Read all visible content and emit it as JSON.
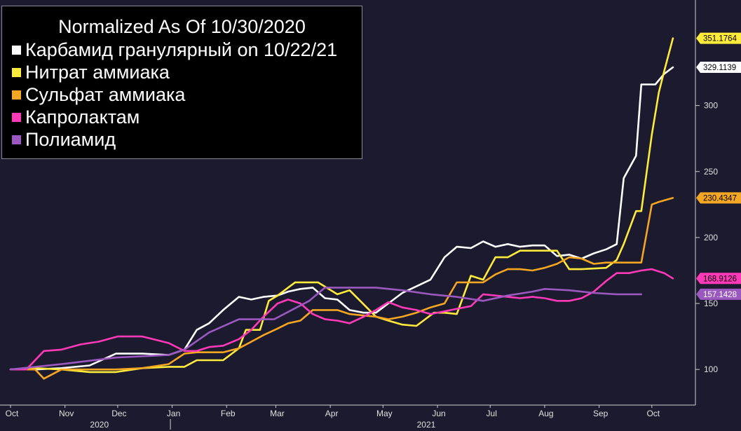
{
  "colors": {
    "background": "#1c1a2e",
    "axis": "#cfcfcf"
  },
  "chart_data": {
    "type": "line",
    "legend_position": "top-left",
    "grid": false,
    "title": "Normalized As Of 10/30/2020",
    "x_range": [
      "2020-10-01",
      "2021-10-31"
    ],
    "x_ticks": [
      {
        "date": "2020-10-01",
        "label": "Oct"
      },
      {
        "date": "2020-11-01",
        "label": "Nov"
      },
      {
        "date": "2020-12-01",
        "label": "Dec"
      },
      {
        "date": "2021-01-01",
        "label": "Jan"
      },
      {
        "date": "2021-02-01",
        "label": "Feb"
      },
      {
        "date": "2021-03-01",
        "label": "Mar"
      },
      {
        "date": "2021-04-01",
        "label": "Apr"
      },
      {
        "date": "2021-05-01",
        "label": "May"
      },
      {
        "date": "2021-06-01",
        "label": "Jun"
      },
      {
        "date": "2021-07-01",
        "label": "Jul"
      },
      {
        "date": "2021-08-01",
        "label": "Aug"
      },
      {
        "date": "2021-09-01",
        "label": "Sep"
      },
      {
        "date": "2021-10-01",
        "label": "Oct"
      }
    ],
    "year_labels": [
      {
        "date": "2020-11-15",
        "label": "2020"
      },
      {
        "date": "2021-05-20",
        "label": "2021"
      }
    ],
    "year_divider": "2020-12-31",
    "ylim": [
      73,
      380
    ],
    "y_ticks": [
      100,
      150,
      200,
      250,
      300
    ],
    "series": [
      {
        "name": "Карбамид гранулярный on 10/22/21",
        "color": "#ffffff",
        "last_label": "329.1139",
        "points": [
          [
            "2020-10-01",
            100
          ],
          [
            "2020-10-15",
            100
          ],
          [
            "2020-10-30",
            101
          ],
          [
            "2020-11-15",
            103
          ],
          [
            "2020-11-30",
            112
          ],
          [
            "2020-12-15",
            112
          ],
          [
            "2020-12-30",
            111
          ],
          [
            "2021-01-08",
            115
          ],
          [
            "2021-01-15",
            130
          ],
          [
            "2021-01-22",
            135
          ],
          [
            "2021-01-30",
            145
          ],
          [
            "2021-02-08",
            155
          ],
          [
            "2021-02-15",
            153
          ],
          [
            "2021-02-22",
            155
          ],
          [
            "2021-03-02",
            156
          ],
          [
            "2021-03-08",
            159
          ],
          [
            "2021-03-15",
            161
          ],
          [
            "2021-03-22",
            162
          ],
          [
            "2021-03-29",
            154
          ],
          [
            "2021-04-05",
            153
          ],
          [
            "2021-04-12",
            145
          ],
          [
            "2021-04-20",
            143
          ],
          [
            "2021-04-27",
            143
          ],
          [
            "2021-05-04",
            150
          ],
          [
            "2021-05-12",
            158
          ],
          [
            "2021-05-20",
            163
          ],
          [
            "2021-05-28",
            168
          ],
          [
            "2021-06-05",
            185
          ],
          [
            "2021-06-12",
            193
          ],
          [
            "2021-06-20",
            192
          ],
          [
            "2021-06-27",
            197
          ],
          [
            "2021-07-04",
            193
          ],
          [
            "2021-07-11",
            195
          ],
          [
            "2021-07-18",
            193
          ],
          [
            "2021-07-25",
            194
          ],
          [
            "2021-08-01",
            194
          ],
          [
            "2021-08-08",
            186
          ],
          [
            "2021-08-15",
            187
          ],
          [
            "2021-08-22",
            184
          ],
          [
            "2021-08-29",
            188
          ],
          [
            "2021-09-05",
            191
          ],
          [
            "2021-09-11",
            195
          ],
          [
            "2021-09-15",
            245
          ],
          [
            "2021-09-22",
            262
          ],
          [
            "2021-09-25",
            316
          ],
          [
            "2021-10-01",
            316
          ],
          [
            "2021-10-03",
            316
          ],
          [
            "2021-10-08",
            324
          ],
          [
            "2021-10-13",
            329
          ]
        ]
      },
      {
        "name": "Нитрат аммиака",
        "color": "#ffeb3b",
        "last_label": "351.1764",
        "points": [
          [
            "2020-10-01",
            100
          ],
          [
            "2020-10-15",
            101
          ],
          [
            "2020-10-30",
            100
          ],
          [
            "2020-11-15",
            98
          ],
          [
            "2020-11-30",
            98
          ],
          [
            "2020-12-15",
            101
          ],
          [
            "2020-12-30",
            102
          ],
          [
            "2021-01-08",
            102
          ],
          [
            "2021-01-15",
            107
          ],
          [
            "2021-01-30",
            107
          ],
          [
            "2021-02-08",
            116
          ],
          [
            "2021-02-12",
            130
          ],
          [
            "2021-02-20",
            130
          ],
          [
            "2021-02-25",
            152
          ],
          [
            "2021-03-02",
            156
          ],
          [
            "2021-03-12",
            166
          ],
          [
            "2021-03-25",
            166
          ],
          [
            "2021-04-05",
            157
          ],
          [
            "2021-04-12",
            160
          ],
          [
            "2021-04-27",
            140
          ],
          [
            "2021-05-04",
            137
          ],
          [
            "2021-05-12",
            134
          ],
          [
            "2021-05-20",
            133
          ],
          [
            "2021-05-30",
            143
          ],
          [
            "2021-06-05",
            143
          ],
          [
            "2021-06-12",
            142
          ],
          [
            "2021-06-20",
            171
          ],
          [
            "2021-06-27",
            168
          ],
          [
            "2021-07-04",
            185
          ],
          [
            "2021-07-11",
            185
          ],
          [
            "2021-07-18",
            190
          ],
          [
            "2021-08-01",
            190
          ],
          [
            "2021-08-08",
            190
          ],
          [
            "2021-08-15",
            176
          ],
          [
            "2021-08-22",
            176
          ],
          [
            "2021-09-05",
            177
          ],
          [
            "2021-09-11",
            183
          ],
          [
            "2021-09-15",
            195
          ],
          [
            "2021-09-22",
            220
          ],
          [
            "2021-09-25",
            220
          ],
          [
            "2021-10-01",
            278
          ],
          [
            "2021-10-05",
            310
          ],
          [
            "2021-10-08",
            326
          ],
          [
            "2021-10-13",
            351
          ]
        ]
      },
      {
        "name": "Сульфат аммиака",
        "color": "#f5a623",
        "last_label": "230.4347",
        "points": [
          [
            "2020-10-01",
            100
          ],
          [
            "2020-10-15",
            100
          ],
          [
            "2020-10-20",
            93
          ],
          [
            "2020-10-30",
            100
          ],
          [
            "2020-11-15",
            100
          ],
          [
            "2020-11-30",
            100
          ],
          [
            "2020-12-15",
            101
          ],
          [
            "2020-12-30",
            104
          ],
          [
            "2021-01-08",
            112
          ],
          [
            "2021-01-15",
            113
          ],
          [
            "2021-01-30",
            113
          ],
          [
            "2021-02-08",
            116
          ],
          [
            "2021-02-15",
            121
          ],
          [
            "2021-02-22",
            126
          ],
          [
            "2021-03-02",
            131
          ],
          [
            "2021-03-08",
            135
          ],
          [
            "2021-03-15",
            137
          ],
          [
            "2021-03-22",
            145
          ],
          [
            "2021-04-05",
            145
          ],
          [
            "2021-04-12",
            142
          ],
          [
            "2021-04-27",
            140
          ],
          [
            "2021-05-04",
            138
          ],
          [
            "2021-05-12",
            140
          ],
          [
            "2021-05-20",
            143
          ],
          [
            "2021-05-28",
            147
          ],
          [
            "2021-06-05",
            150
          ],
          [
            "2021-06-12",
            166
          ],
          [
            "2021-06-20",
            166
          ],
          [
            "2021-06-27",
            166
          ],
          [
            "2021-07-04",
            172
          ],
          [
            "2021-07-11",
            176
          ],
          [
            "2021-07-18",
            176
          ],
          [
            "2021-07-25",
            175
          ],
          [
            "2021-08-01",
            177
          ],
          [
            "2021-08-08",
            180
          ],
          [
            "2021-08-15",
            185
          ],
          [
            "2021-08-22",
            184
          ],
          [
            "2021-08-29",
            180
          ],
          [
            "2021-09-05",
            181
          ],
          [
            "2021-09-11",
            181
          ],
          [
            "2021-09-25",
            181
          ],
          [
            "2021-10-01",
            225
          ],
          [
            "2021-10-05",
            227
          ],
          [
            "2021-10-13",
            230
          ]
        ]
      },
      {
        "name": "Капролактам",
        "color": "#ff3ab8",
        "last_label": "168.9126",
        "points": [
          [
            "2020-10-01",
            100
          ],
          [
            "2020-10-10",
            100
          ],
          [
            "2020-10-20",
            114
          ],
          [
            "2020-10-30",
            115
          ],
          [
            "2020-11-10",
            119
          ],
          [
            "2020-11-20",
            121
          ],
          [
            "2020-12-01",
            125
          ],
          [
            "2020-12-15",
            125
          ],
          [
            "2020-12-30",
            120
          ],
          [
            "2021-01-08",
            114
          ],
          [
            "2021-01-15",
            114
          ],
          [
            "2021-01-22",
            117
          ],
          [
            "2021-01-30",
            118
          ],
          [
            "2021-02-08",
            123
          ],
          [
            "2021-02-15",
            130
          ],
          [
            "2021-02-22",
            140
          ],
          [
            "2021-03-02",
            150
          ],
          [
            "2021-03-08",
            153
          ],
          [
            "2021-03-15",
            150
          ],
          [
            "2021-03-22",
            142
          ],
          [
            "2021-03-29",
            138
          ],
          [
            "2021-04-05",
            137
          ],
          [
            "2021-04-12",
            135
          ],
          [
            "2021-04-20",
            140
          ],
          [
            "2021-04-27",
            145
          ],
          [
            "2021-05-04",
            151
          ],
          [
            "2021-05-12",
            147
          ],
          [
            "2021-05-20",
            145
          ],
          [
            "2021-05-28",
            142
          ],
          [
            "2021-06-05",
            144
          ],
          [
            "2021-06-12",
            146
          ],
          [
            "2021-06-20",
            148
          ],
          [
            "2021-06-27",
            157
          ],
          [
            "2021-07-04",
            156
          ],
          [
            "2021-07-11",
            155
          ],
          [
            "2021-07-18",
            154
          ],
          [
            "2021-07-25",
            155
          ],
          [
            "2021-08-01",
            154
          ],
          [
            "2021-08-08",
            152
          ],
          [
            "2021-08-15",
            152
          ],
          [
            "2021-08-22",
            154
          ],
          [
            "2021-08-29",
            159
          ],
          [
            "2021-09-05",
            167
          ],
          [
            "2021-09-11",
            173
          ],
          [
            "2021-09-18",
            173
          ],
          [
            "2021-09-25",
            175
          ],
          [
            "2021-10-01",
            176
          ],
          [
            "2021-10-08",
            173
          ],
          [
            "2021-10-13",
            169
          ]
        ]
      },
      {
        "name": "Полиамид",
        "color": "#9b59c0",
        "last_label": "157.1428",
        "points": [
          [
            "2020-10-01",
            100
          ],
          [
            "2020-10-30",
            104
          ],
          [
            "2020-11-30",
            109
          ],
          [
            "2020-12-30",
            111
          ],
          [
            "2021-01-08",
            115
          ],
          [
            "2021-01-22",
            128
          ],
          [
            "2021-02-08",
            138
          ],
          [
            "2021-02-28",
            138
          ],
          [
            "2021-03-20",
            152
          ],
          [
            "2021-03-29",
            162
          ],
          [
            "2021-04-12",
            162
          ],
          [
            "2021-04-27",
            162
          ],
          [
            "2021-05-12",
            160
          ],
          [
            "2021-05-28",
            157
          ],
          [
            "2021-06-12",
            155
          ],
          [
            "2021-06-27",
            152
          ],
          [
            "2021-07-11",
            156
          ],
          [
            "2021-07-25",
            159
          ],
          [
            "2021-08-01",
            161
          ],
          [
            "2021-08-15",
            160
          ],
          [
            "2021-08-29",
            158
          ],
          [
            "2021-09-11",
            157
          ],
          [
            "2021-09-25",
            157
          ]
        ]
      }
    ]
  }
}
